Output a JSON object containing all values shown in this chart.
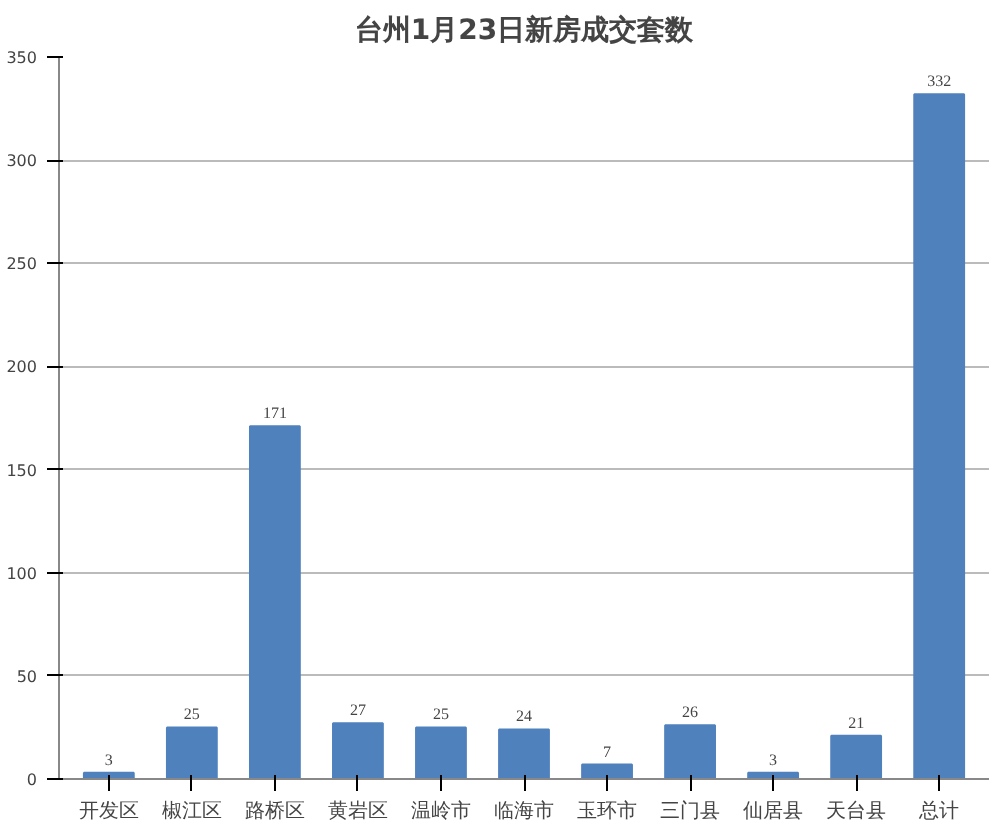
{
  "chart_data": {
    "type": "bar",
    "title": "台州1月23日新房成交套数",
    "categories": [
      "开发区",
      "椒江区",
      "路桥区",
      "黄岩区",
      "温岭市",
      "临海市",
      "玉环市",
      "三门县",
      "仙居县",
      "天台县",
      "总计"
    ],
    "values": [
      3,
      25,
      171,
      27,
      25,
      24,
      7,
      26,
      3,
      21,
      332
    ],
    "color": "#4f81bd",
    "ylim": [
      0,
      350
    ],
    "yticks": [
      0,
      50,
      100,
      150,
      200,
      250,
      300,
      350
    ],
    "grid": "y",
    "data_labels": true
  }
}
